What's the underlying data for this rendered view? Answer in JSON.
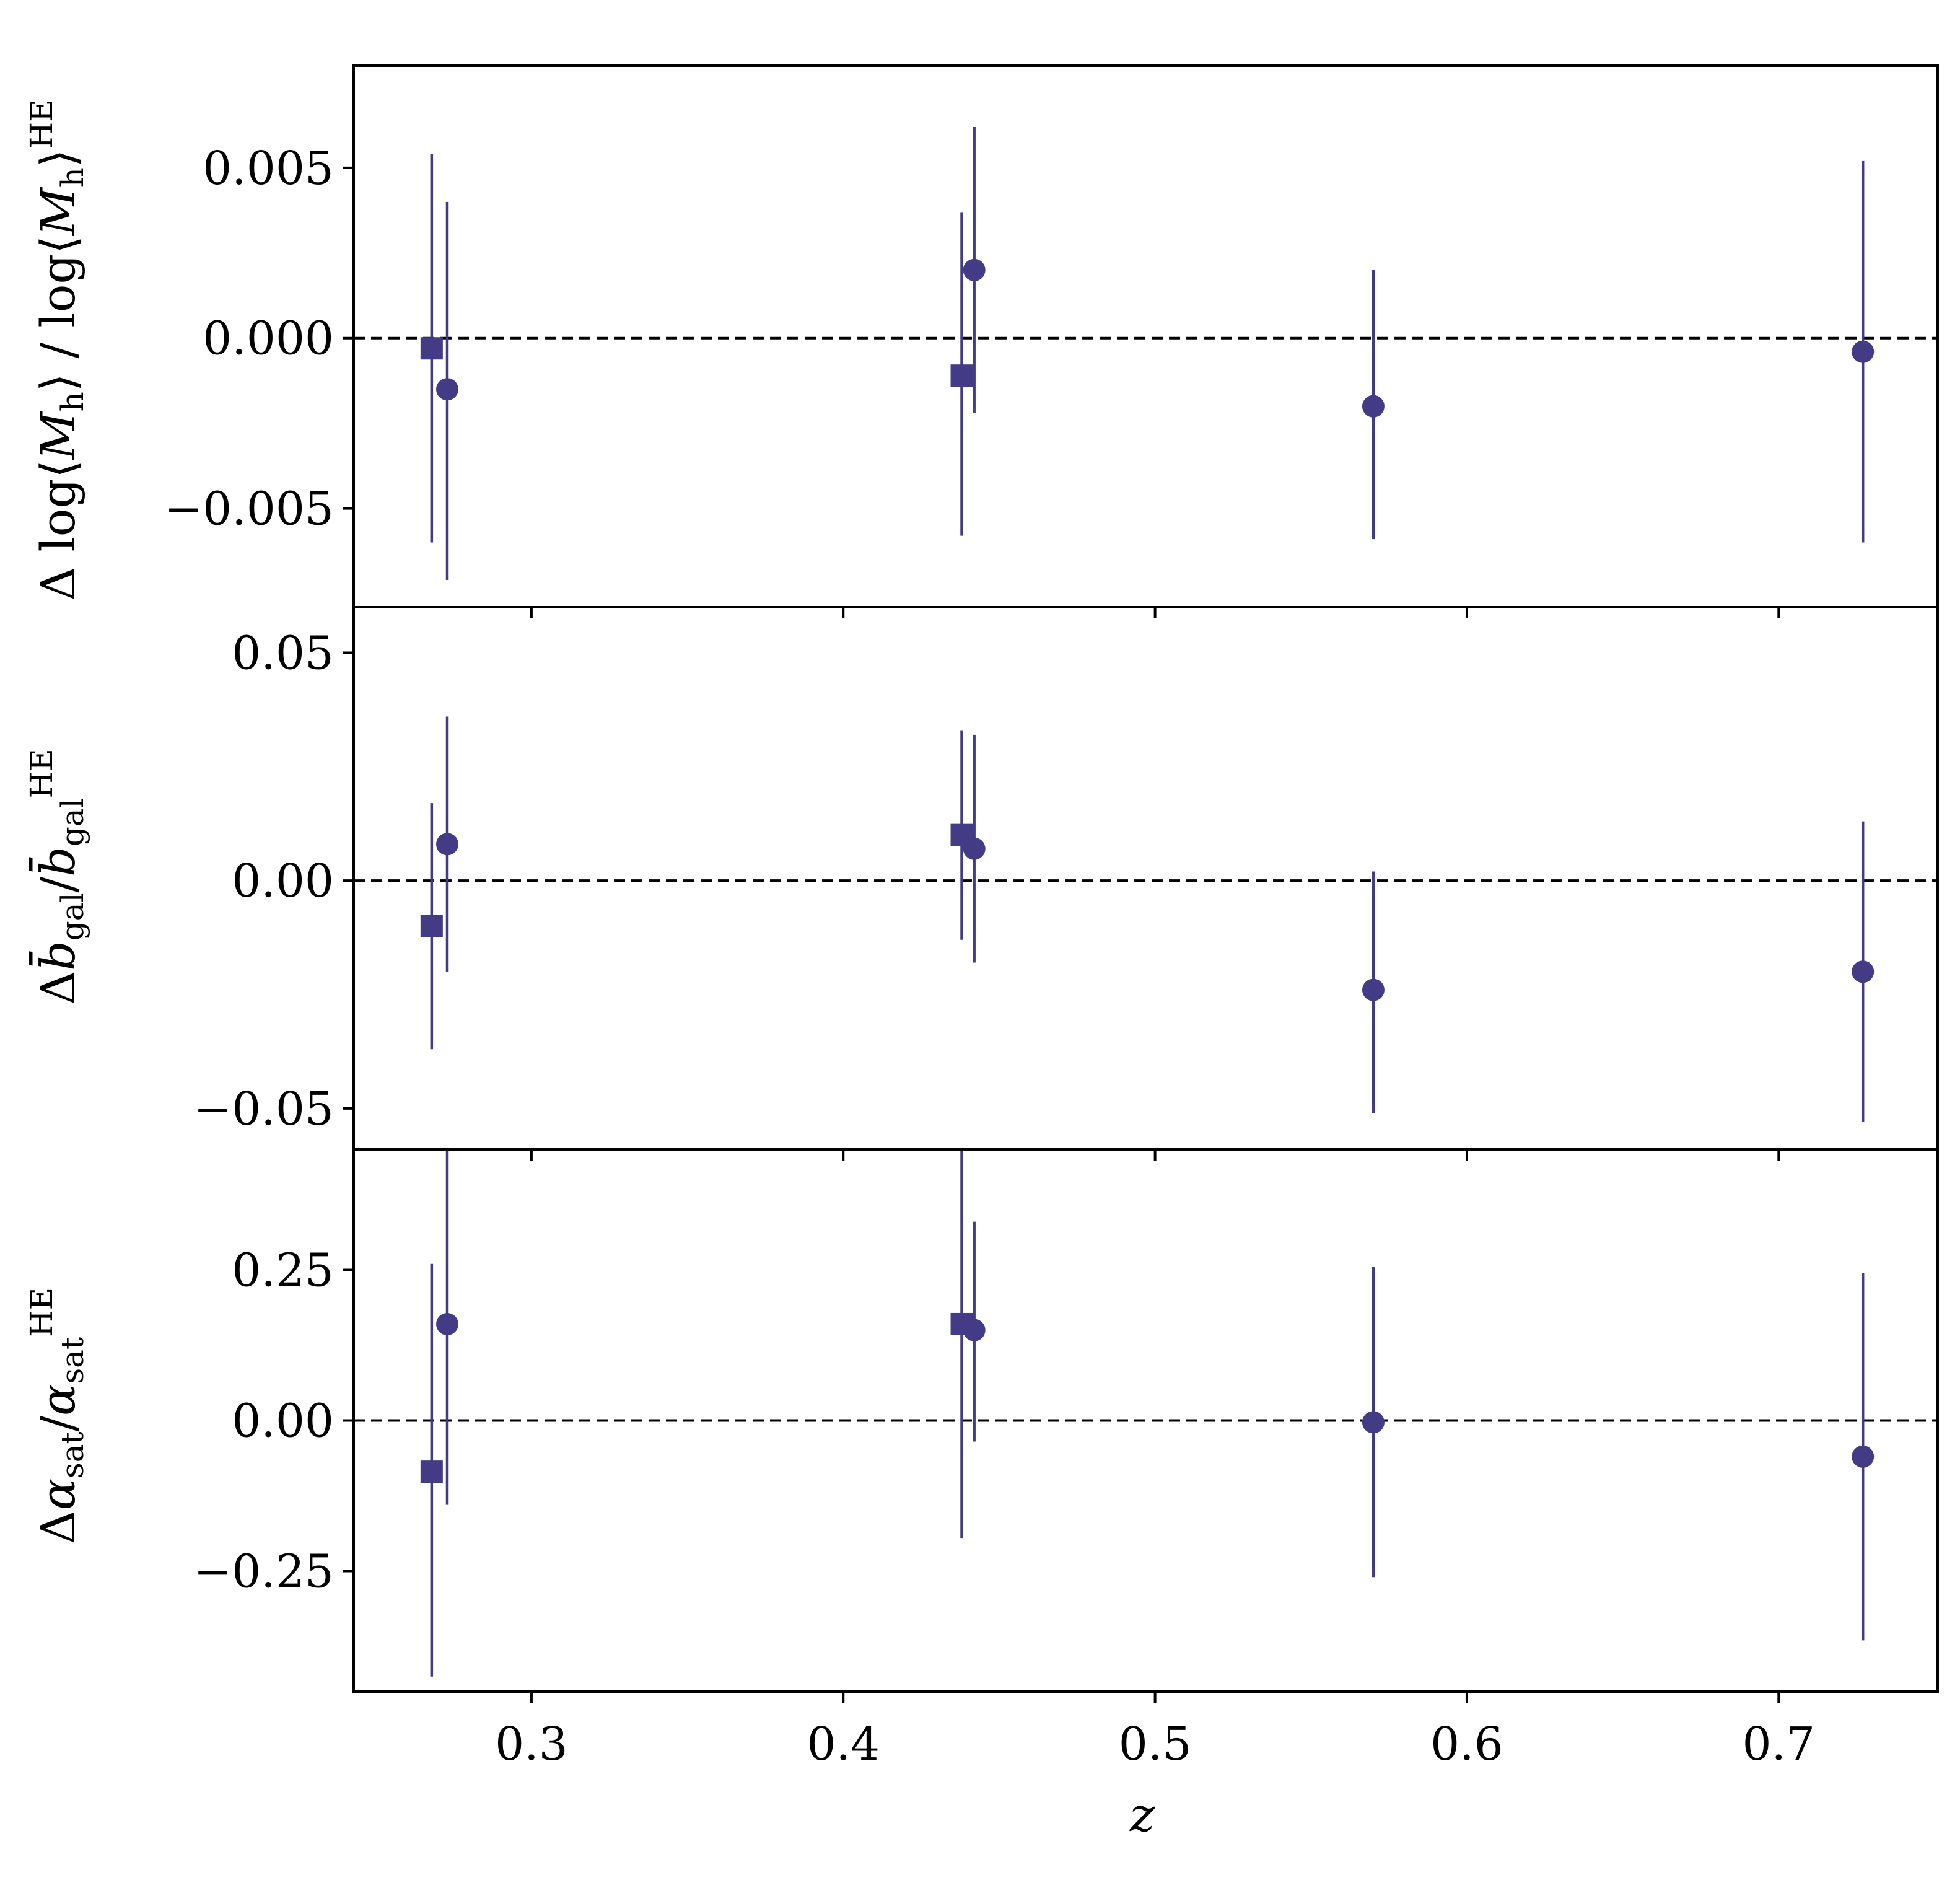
{
  "colors": {
    "marker": "#433b85",
    "axis": "#000000",
    "reference_line": "#000000"
  },
  "chart_data": {
    "type": "scatter",
    "layout": "3 vertically stacked panels with shared x-axis",
    "x_label": "z",
    "xlim": [
      0.243,
      0.751
    ],
    "x_ticks": [
      {
        "value": 0.3,
        "label": "0.3"
      },
      {
        "value": 0.4,
        "label": "0.4"
      },
      {
        "value": 0.5,
        "label": "0.5"
      },
      {
        "value": 0.6,
        "label": "0.6"
      },
      {
        "value": 0.7,
        "label": "0.7"
      }
    ],
    "marker_shapes": [
      "square",
      "circle"
    ],
    "grid": false,
    "legend": "none",
    "panels": [
      {
        "y_label": "Δ log⟨M_h⟩ / log⟨M_h⟩^HE",
        "ylim": [
          -0.0079,
          0.008
        ],
        "reference_line": 0,
        "y_ticks": [
          {
            "value": 0.005,
            "label": "0.005"
          },
          {
            "value": 0.0,
            "label": "0.000"
          },
          {
            "value": -0.005,
            "label": "−0.005"
          }
        ],
        "points": [
          {
            "x": 0.268,
            "y": -0.0003,
            "yerr_low": -0.006,
            "yerr_high": 0.0054,
            "marker": "square"
          },
          {
            "x": 0.273,
            "y": -0.0015,
            "yerr_low": -0.0071,
            "yerr_high": 0.004,
            "marker": "circle"
          },
          {
            "x": 0.438,
            "y": -0.0011,
            "yerr_low": -0.0058,
            "yerr_high": 0.0037,
            "marker": "square"
          },
          {
            "x": 0.442,
            "y": 0.002,
            "yerr_low": -0.0022,
            "yerr_high": 0.0062,
            "marker": "circle"
          },
          {
            "x": 0.57,
            "y": -0.002,
            "yerr_low": -0.0059,
            "yerr_high": 0.002,
            "marker": "circle"
          },
          {
            "x": 0.727,
            "y": -0.0004,
            "yerr_low": -0.006,
            "yerr_high": 0.0052,
            "marker": "circle"
          }
        ]
      },
      {
        "y_label": "Δb̄_gal / b̄_gal^HE",
        "ylim": [
          -0.059,
          0.06
        ],
        "reference_line": 0,
        "y_ticks": [
          {
            "value": 0.05,
            "label": "0.05"
          },
          {
            "value": 0.0,
            "label": "0.00"
          },
          {
            "value": -0.05,
            "label": "−0.05"
          }
        ],
        "points": [
          {
            "x": 0.268,
            "y": -0.01,
            "yerr_low": -0.037,
            "yerr_high": 0.017,
            "marker": "square"
          },
          {
            "x": 0.273,
            "y": 0.008,
            "yerr_low": -0.02,
            "yerr_high": 0.036,
            "marker": "circle"
          },
          {
            "x": 0.438,
            "y": 0.01,
            "yerr_low": -0.013,
            "yerr_high": 0.033,
            "marker": "square"
          },
          {
            "x": 0.442,
            "y": 0.007,
            "yerr_low": -0.018,
            "yerr_high": 0.032,
            "marker": "circle"
          },
          {
            "x": 0.57,
            "y": -0.024,
            "yerr_low": -0.051,
            "yerr_high": 0.002,
            "marker": "circle"
          },
          {
            "x": 0.727,
            "y": -0.02,
            "yerr_low": -0.053,
            "yerr_high": 0.013,
            "marker": "circle"
          }
        ]
      },
      {
        "y_label": "Δα_sat / α_sat^HE",
        "ylim": [
          -0.45,
          0.45
        ],
        "reference_line": 0,
        "y_ticks": [
          {
            "value": 0.25,
            "label": "0.25"
          },
          {
            "value": 0.0,
            "label": "0.00"
          },
          {
            "value": -0.25,
            "label": "−0.25"
          }
        ],
        "points": [
          {
            "x": 0.268,
            "y": -0.085,
            "yerr_low": -0.425,
            "yerr_high": 0.26,
            "marker": "square"
          },
          {
            "x": 0.273,
            "y": 0.16,
            "yerr_low": -0.14,
            "yerr_high": 0.46,
            "marker": "circle"
          },
          {
            "x": 0.438,
            "y": 0.16,
            "yerr_low": -0.195,
            "yerr_high": 0.46,
            "marker": "square"
          },
          {
            "x": 0.442,
            "y": 0.15,
            "yerr_low": -0.035,
            "yerr_high": 0.33,
            "marker": "circle"
          },
          {
            "x": 0.57,
            "y": -0.003,
            "yerr_low": -0.26,
            "yerr_high": 0.255,
            "marker": "circle"
          },
          {
            "x": 0.727,
            "y": -0.06,
            "yerr_low": -0.365,
            "yerr_high": 0.245,
            "marker": "circle"
          }
        ]
      }
    ]
  }
}
